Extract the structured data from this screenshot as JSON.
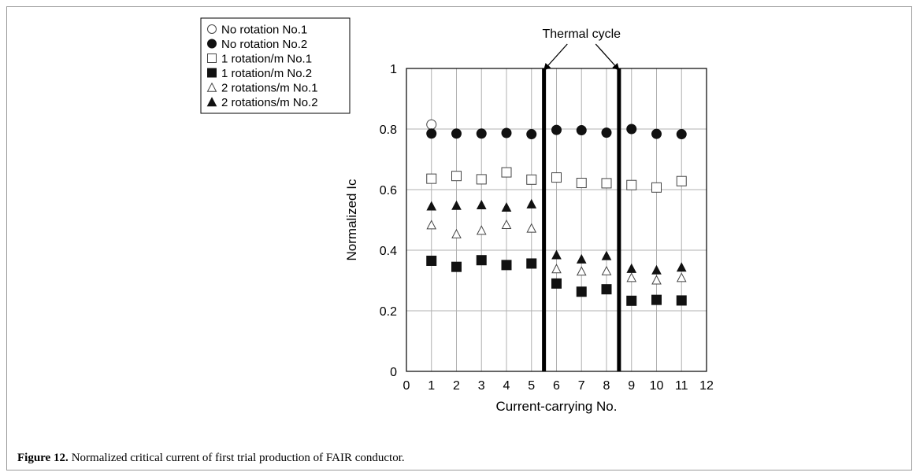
{
  "caption": {
    "label": "Figure 12.",
    "text": "Normalized critical current of first trial production of FAIR conductor."
  },
  "chart_data": {
    "type": "scatter",
    "xlabel": "Current-carrying No.",
    "ylabel": "Normalized Ic",
    "xlim": [
      0,
      12
    ],
    "ylim": [
      0,
      1
    ],
    "xticks": [
      0,
      1,
      2,
      3,
      4,
      5,
      6,
      7,
      8,
      9,
      10,
      11,
      12
    ],
    "yticks": [
      0,
      0.2,
      0.4,
      0.6,
      0.8,
      1
    ],
    "ytick_labels": [
      "0",
      "0.2",
      "0.4",
      "0.6",
      "0.8",
      "1"
    ],
    "grid": true,
    "legend_position": "top-left",
    "annotation": {
      "text": "Thermal cycle",
      "vertical_lines_x": [
        5.5,
        8.5
      ]
    },
    "series": [
      {
        "name": "No rotation No.1",
        "marker": "circle-open",
        "x": [
          1
        ],
        "y": [
          0.815
        ]
      },
      {
        "name": "No rotation No.2",
        "marker": "circle-filled",
        "x": [
          1,
          2,
          3,
          4,
          5,
          6,
          7,
          8,
          9,
          10,
          11
        ],
        "y": [
          0.785,
          0.785,
          0.785,
          0.787,
          0.783,
          0.797,
          0.796,
          0.788,
          0.8,
          0.784,
          0.783
        ]
      },
      {
        "name": "1 rotation/m No.1",
        "marker": "square-open",
        "x": [
          1,
          2,
          3,
          4,
          5,
          6,
          7,
          8,
          9,
          10,
          11
        ],
        "y": [
          0.636,
          0.645,
          0.634,
          0.657,
          0.633,
          0.64,
          0.622,
          0.621,
          0.615,
          0.607,
          0.628
        ]
      },
      {
        "name": "1 rotation/m No.2",
        "marker": "square-filled",
        "x": [
          1,
          2,
          3,
          4,
          5,
          6,
          7,
          8,
          9,
          10,
          11
        ],
        "y": [
          0.365,
          0.345,
          0.367,
          0.351,
          0.356,
          0.29,
          0.263,
          0.271,
          0.233,
          0.236,
          0.234
        ]
      },
      {
        "name": "2 rotations/m No.1",
        "marker": "triangle-open",
        "x": [
          1,
          2,
          3,
          4,
          5,
          6,
          7,
          8,
          9,
          10,
          11
        ],
        "y": [
          0.484,
          0.454,
          0.466,
          0.485,
          0.473,
          0.339,
          0.331,
          0.332,
          0.31,
          0.302,
          0.31
        ]
      },
      {
        "name": "2 rotations/m No.2",
        "marker": "triangle-filled",
        "x": [
          1,
          2,
          3,
          4,
          5,
          6,
          7,
          8,
          9,
          10,
          11
        ],
        "y": [
          0.546,
          0.548,
          0.55,
          0.542,
          0.553,
          0.385,
          0.371,
          0.382,
          0.34,
          0.335,
          0.344
        ]
      }
    ]
  }
}
